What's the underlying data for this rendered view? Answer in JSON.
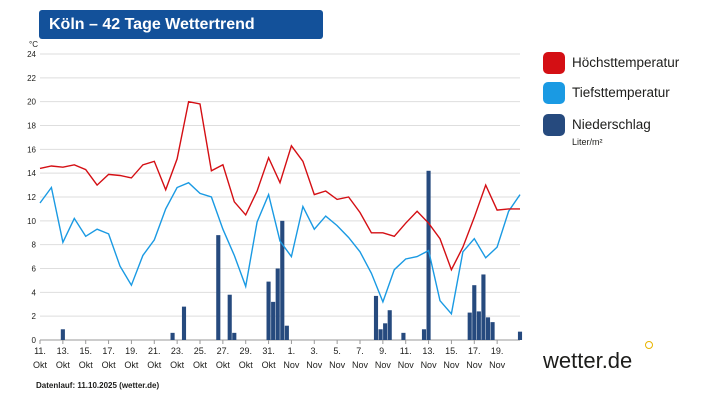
{
  "header": {
    "title": "Köln – 42 Tage Wettertrend"
  },
  "axis_unit": "°C",
  "legend": {
    "max_label": "Höchsttemperatur",
    "min_label": "Tiefsttemperatur",
    "precip_label": "Niederschlag",
    "precip_unit": "Liter/m²"
  },
  "brand": "wetter.de",
  "footer": "Datenlauf: 11.10.2025 (wetter.de)",
  "colors": {
    "max": "#d40f14",
    "min": "#1a9ae3",
    "precip": "#264a7e",
    "grid": "#dedede",
    "text": "#1d1d1b"
  },
  "chart_data": {
    "type": "line",
    "title": "Köln – 42 Tage Wettertrend",
    "ylabel": "°C",
    "ylim": [
      0,
      24
    ],
    "yticks": [
      0,
      2,
      4,
      6,
      8,
      10,
      12,
      14,
      16,
      18,
      20,
      22,
      24
    ],
    "x_tick_day_index": [
      0,
      2,
      4,
      6,
      8,
      10,
      12,
      14,
      16,
      18,
      20,
      22,
      24,
      26,
      28,
      30,
      32,
      34,
      36,
      38,
      40
    ],
    "x_tick_labels": [
      [
        "11.",
        "Okt"
      ],
      [
        "13.",
        "Okt"
      ],
      [
        "15.",
        "Okt"
      ],
      [
        "17.",
        "Okt"
      ],
      [
        "19.",
        "Okt"
      ],
      [
        "21.",
        "Okt"
      ],
      [
        "23.",
        "Okt"
      ],
      [
        "25.",
        "Okt"
      ],
      [
        "27.",
        "Okt"
      ],
      [
        "29.",
        "Okt"
      ],
      [
        "31.",
        "Okt"
      ],
      [
        "1.",
        "Nov"
      ],
      [
        "3.",
        "Nov"
      ],
      [
        "5.",
        "Nov"
      ],
      [
        "7.",
        "Nov"
      ],
      [
        "9.",
        "Nov"
      ],
      [
        "11.",
        "Nov"
      ],
      [
        "13.",
        "Nov"
      ],
      [
        "15.",
        "Nov"
      ],
      [
        "17.",
        "Nov"
      ],
      [
        "19.",
        "Nov"
      ]
    ],
    "series": [
      {
        "name": "Höchsttemperatur",
        "x": [
          0,
          1,
          2,
          3,
          4,
          5,
          6,
          7,
          8,
          9,
          10,
          11,
          12,
          13,
          14,
          15,
          16,
          17,
          18,
          19,
          20,
          21,
          22,
          23,
          24,
          25,
          26,
          27,
          28,
          29,
          30,
          31,
          32,
          33,
          34,
          35,
          36,
          37,
          38,
          39,
          40,
          41,
          42
        ],
        "values": [
          14.4,
          14.6,
          14.5,
          14.7,
          14.3,
          13.0,
          13.9,
          13.8,
          13.6,
          14.7,
          15.0,
          12.6,
          15.2,
          20.0,
          19.8,
          14.2,
          14.7,
          11.6,
          10.5,
          12.5,
          15.3,
          13.2,
          16.3,
          15.0,
          12.2,
          12.5,
          11.8,
          12.0,
          10.7,
          9.0,
          9.0,
          8.7,
          9.8,
          10.8,
          9.8,
          8.5,
          5.9,
          7.8,
          10.3,
          13.0,
          10.9,
          11.0,
          11.0
        ]
      },
      {
        "name": "Tiefsttemperatur",
        "x": [
          0,
          1,
          2,
          3,
          4,
          5,
          6,
          7,
          8,
          9,
          10,
          11,
          12,
          13,
          14,
          15,
          16,
          17,
          18,
          19,
          20,
          21,
          22,
          23,
          24,
          25,
          26,
          27,
          28,
          29,
          30,
          31,
          32,
          33,
          34,
          35,
          36,
          37,
          38,
          39,
          40,
          41,
          42
        ],
        "values": [
          11.5,
          12.8,
          8.2,
          10.2,
          8.7,
          9.3,
          8.9,
          6.2,
          4.6,
          7.1,
          8.4,
          11.0,
          12.8,
          13.2,
          12.3,
          12.0,
          9.3,
          7.1,
          4.5,
          9.9,
          12.2,
          8.3,
          7.0,
          11.2,
          9.3,
          10.4,
          9.6,
          8.6,
          7.4,
          5.6,
          3.2,
          5.9,
          6.8,
          7.0,
          7.5,
          3.3,
          2.2,
          7.4,
          8.5,
          6.9,
          7.8,
          10.8,
          12.2
        ]
      },
      {
        "name": "Niederschlag",
        "type": "bar",
        "x": [
          2,
          11.6,
          12.6,
          15.6,
          16.6,
          17.0,
          20.0,
          20.4,
          20.8,
          21.2,
          21.6,
          29.4,
          29.8,
          30.2,
          30.6,
          31.8,
          33.6,
          34.0,
          37.6,
          38.0,
          38.4,
          38.8,
          39.2,
          39.6,
          42.0
        ],
        "values": [
          0.9,
          0.6,
          2.8,
          8.8,
          3.8,
          0.6,
          4.9,
          3.2,
          6.0,
          10.0,
          1.2,
          3.7,
          0.9,
          1.4,
          2.5,
          0.6,
          0.9,
          14.2,
          2.3,
          4.6,
          2.4,
          5.5,
          1.9,
          1.5,
          0.7
        ]
      }
    ]
  }
}
